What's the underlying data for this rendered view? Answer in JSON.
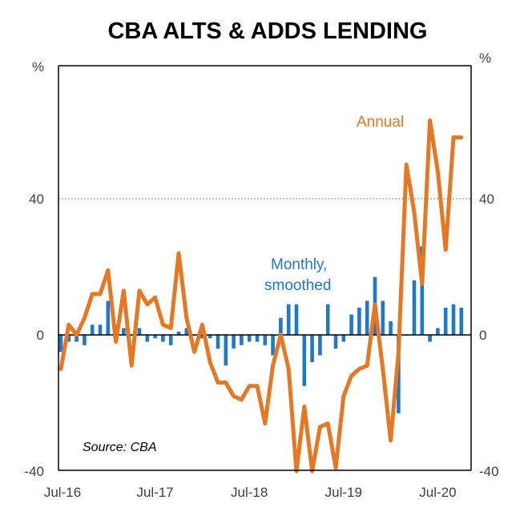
{
  "chart_data": {
    "type": "bar+line",
    "title": "CBA ALTS & ADDS LENDING",
    "y_unit_left": "%",
    "y_unit_right": "%",
    "ylim": [
      -40,
      80
    ],
    "yticks": [
      {
        "value": 40,
        "label": "40"
      },
      {
        "value": 0,
        "label": "0"
      },
      {
        "value": -40,
        "label": "-40"
      }
    ],
    "xticks": [
      {
        "index": 0,
        "label": "Jul-16"
      },
      {
        "index": 12,
        "label": "Jul-17"
      },
      {
        "index": 24,
        "label": "Jul-18"
      },
      {
        "index": 36,
        "label": "Jul-19"
      },
      {
        "index": 48,
        "label": "Jul-20"
      }
    ],
    "n_months": 52,
    "annual_line": {
      "name": "Annual",
      "color": "#E87722",
      "values": [
        -10,
        3,
        0,
        5,
        12,
        12,
        19,
        -2,
        13,
        -9,
        13,
        9,
        11,
        3,
        2,
        24,
        5,
        -5,
        3,
        -8,
        -14,
        -14,
        -18,
        -19,
        -15,
        -15,
        -26,
        -9,
        0,
        -10,
        -41,
        -21,
        -41,
        -27,
        -26,
        -39,
        -18,
        -12,
        -10,
        -9,
        9,
        -10,
        -31,
        -5,
        50,
        36,
        15,
        63,
        48,
        25,
        58,
        58
      ]
    },
    "monthly_bars": {
      "name": "Monthly, smoothed",
      "color": "#1F78C8",
      "values": [
        -5,
        -2,
        -2,
        -3,
        3,
        3,
        10,
        3,
        2,
        0,
        2,
        -2,
        -1,
        -2,
        -3,
        1,
        2,
        0,
        -1,
        -1,
        -4,
        -9,
        -4,
        -3,
        -2,
        -2,
        -3,
        -6,
        5,
        9,
        9,
        -15,
        -8,
        -6,
        9,
        -4,
        -2,
        6,
        8,
        10,
        17,
        10,
        4,
        -23,
        0,
        16,
        26,
        -2,
        2,
        8,
        9,
        8
      ]
    },
    "annotations": {
      "annual_label": "Annual",
      "monthly_label_line1": "Monthly,",
      "monthly_label_line2": "smoothed",
      "source": "Source: CBA"
    }
  }
}
